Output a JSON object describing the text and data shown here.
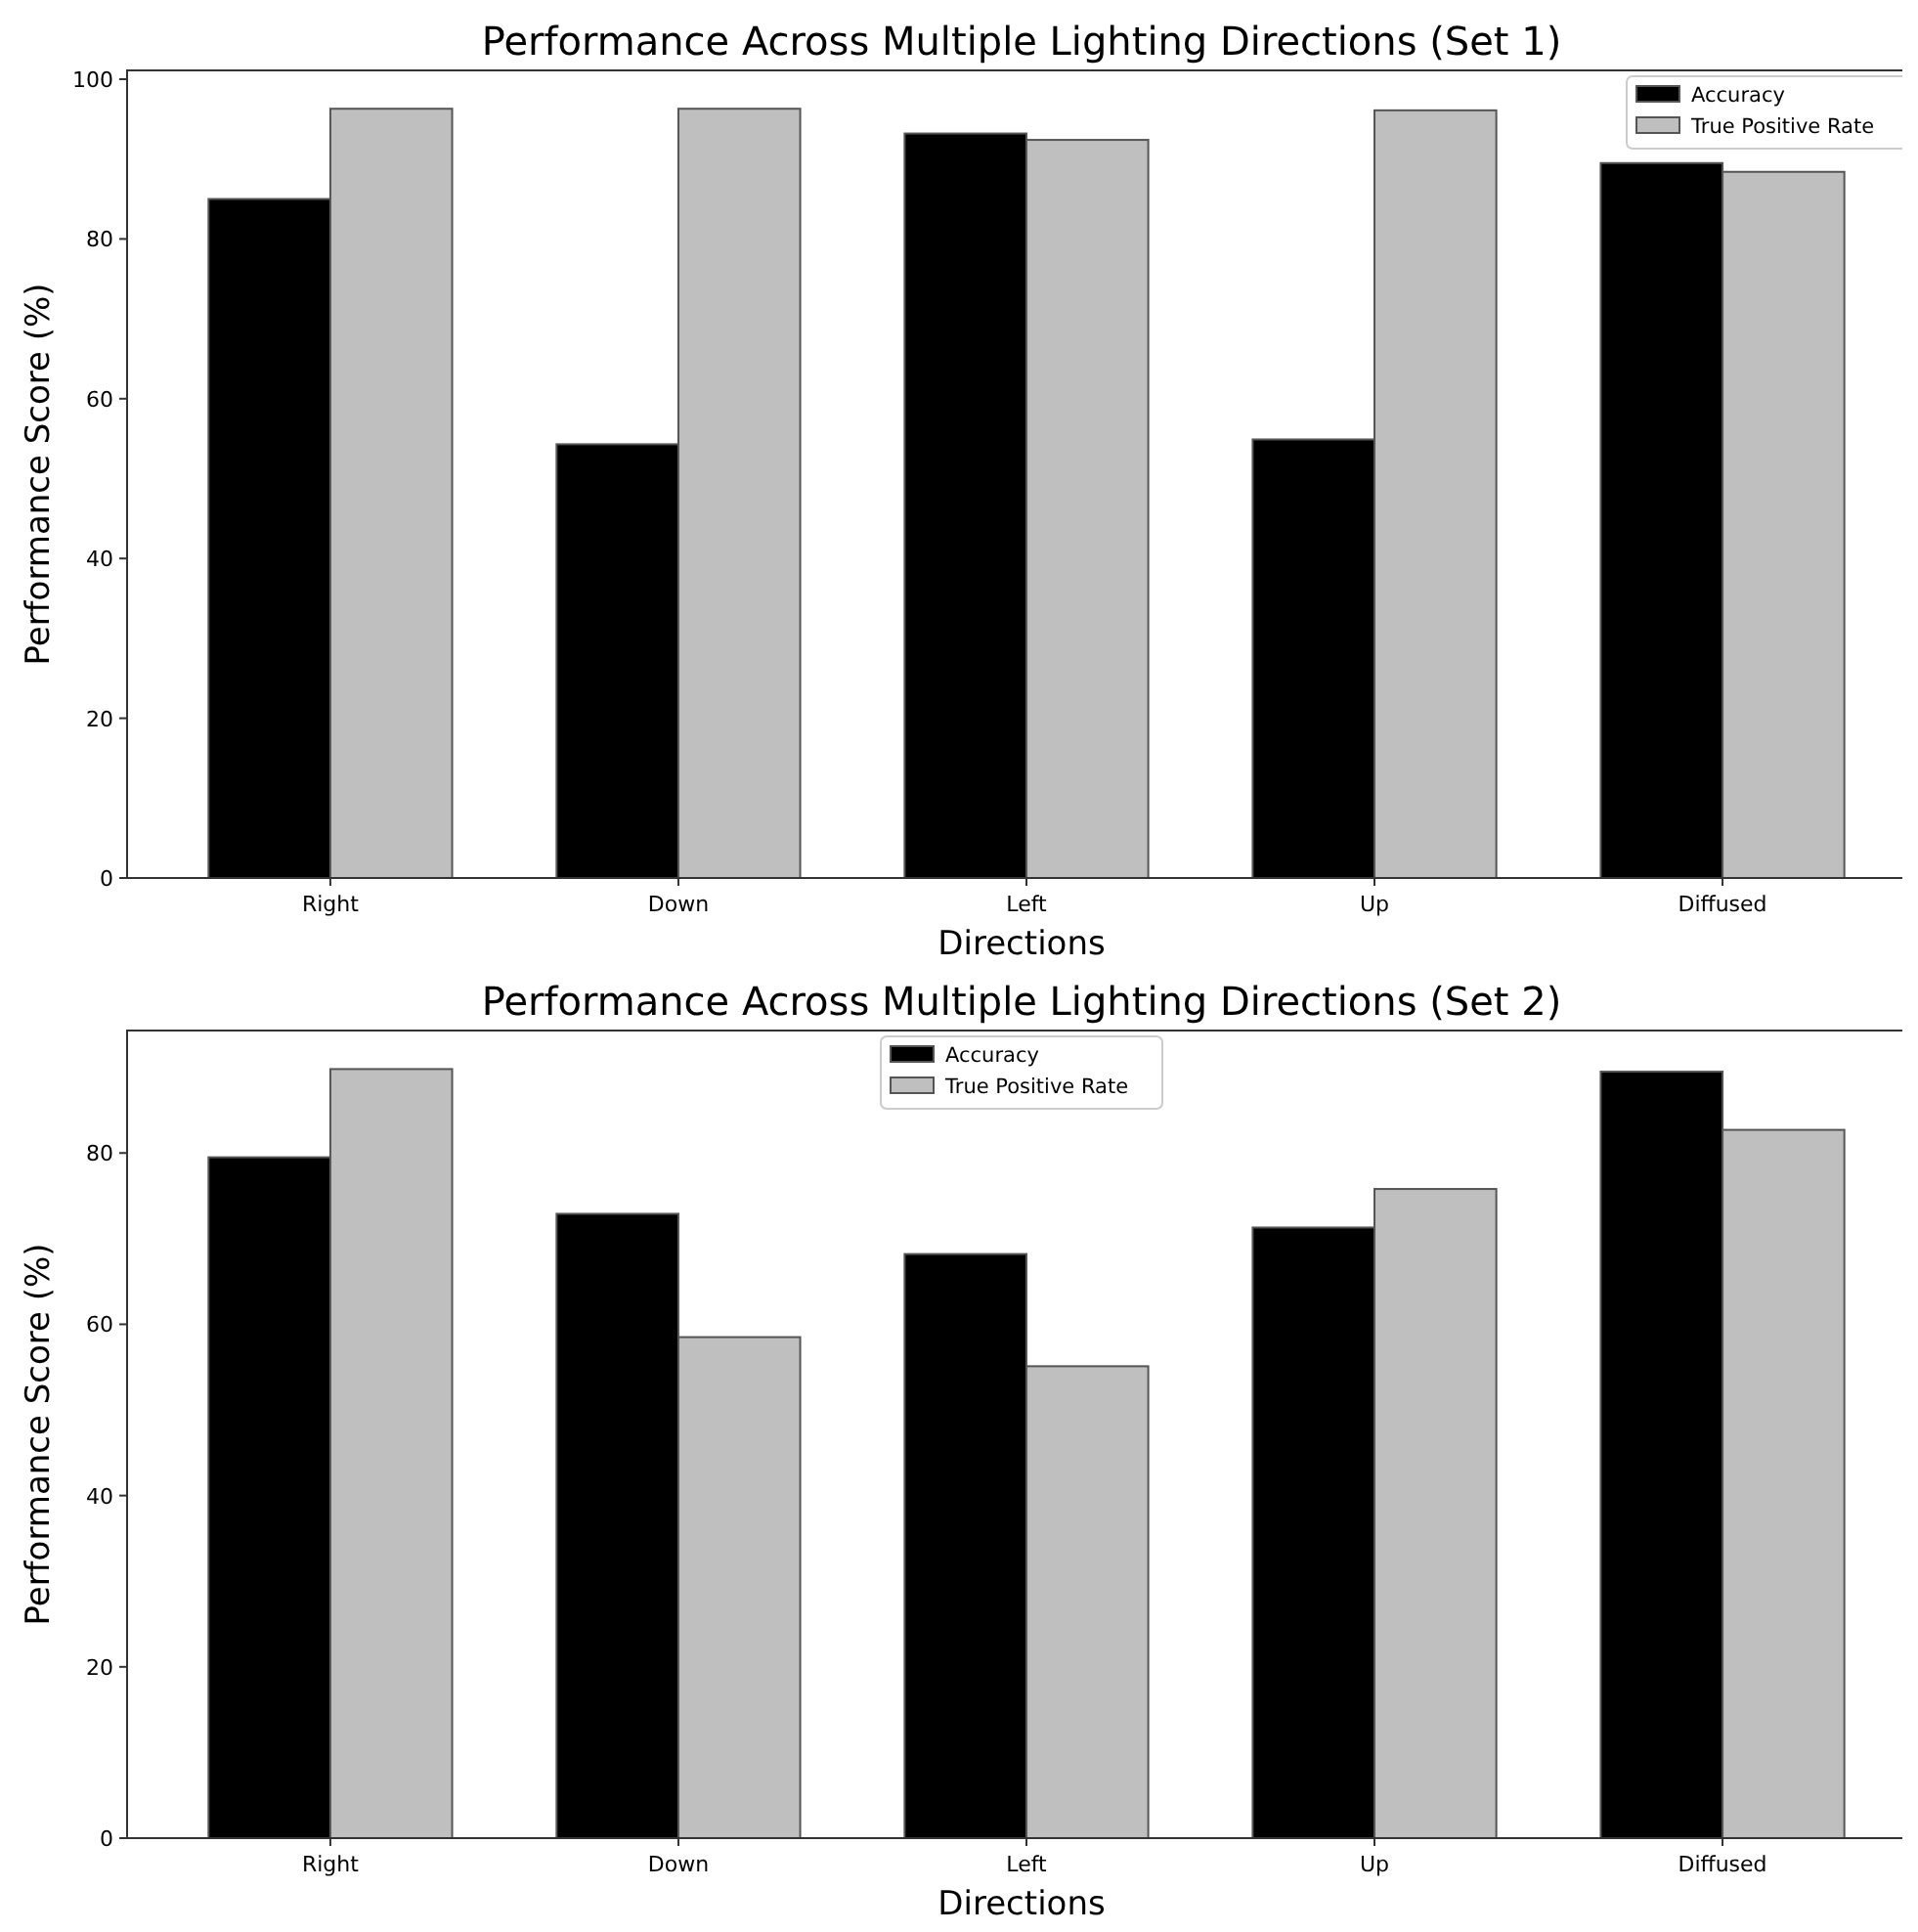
{
  "chart_data": [
    {
      "type": "bar",
      "title": "Performance Across Multiple Lighting Directions (Set 1)",
      "xlabel": "Directions",
      "ylabel": "Performance Score (%)",
      "categories": [
        "Right",
        "Down",
        "Left",
        "Up",
        "Diffused"
      ],
      "series": [
        {
          "name": "Accuracy",
          "color": "#000000",
          "values": [
            85.0,
            54.3,
            93.2,
            54.9,
            89.5
          ]
        },
        {
          "name": "True Positive Rate",
          "color": "#bfbfbf",
          "values": [
            96.3,
            96.3,
            92.4,
            96.1,
            88.4
          ]
        }
      ],
      "ylim": [
        0,
        101.1
      ],
      "yticks": [
        0,
        20,
        40,
        60,
        80,
        100
      ],
      "legend": "top right"
    },
    {
      "type": "bar",
      "title": "Performance Across Multiple Lighting Directions (Set 2)",
      "xlabel": "Directions",
      "ylabel": "Performance Score (%)",
      "categories": [
        "Right",
        "Down",
        "Left",
        "Up",
        "Diffused"
      ],
      "series": [
        {
          "name": "Accuracy",
          "color": "#000000",
          "values": [
            79.5,
            72.9,
            68.2,
            71.3,
            89.5
          ]
        },
        {
          "name": "True Positive Rate",
          "color": "#bfbfbf",
          "values": [
            89.8,
            58.5,
            55.1,
            75.8,
            82.7
          ]
        }
      ],
      "ylim": [
        0,
        94.3
      ],
      "yticks": [
        0,
        20,
        40,
        60,
        80
      ],
      "legend": "top"
    }
  ]
}
